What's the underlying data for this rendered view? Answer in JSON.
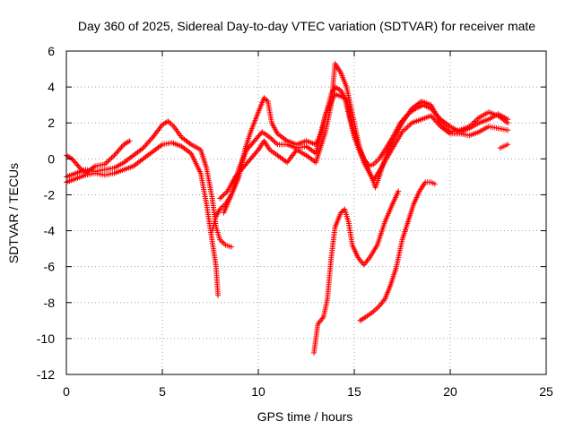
{
  "chart_data": {
    "type": "scatter",
    "title": "Day 360 of 2025, Sidereal Day-to-day VTEC variation (SDTVAR) for receiver mate",
    "xlabel": "GPS time / hours",
    "ylabel": "SDTVAR / TECUs",
    "xlim": [
      0,
      25
    ],
    "ylim": [
      -12,
      6
    ],
    "xticks": [
      "0",
      "5",
      "10",
      "15",
      "20",
      "25"
    ],
    "yticks": [
      "-12",
      "-10",
      "-8",
      "-6",
      "-4",
      "-2",
      "0",
      "2",
      "4",
      "6"
    ],
    "grid": true,
    "marker": "+",
    "color": "#ff0000",
    "series": [
      {
        "tracks": [
          [
            [
              0,
              -1.3
            ],
            [
              0.5,
              -1.1
            ],
            [
              1,
              -0.9
            ],
            [
              1.5,
              -0.8
            ],
            [
              2,
              -0.9
            ],
            [
              2.5,
              -0.8
            ],
            [
              3,
              -0.6
            ],
            [
              3.5,
              -0.4
            ],
            [
              4,
              0.0
            ],
            [
              4.5,
              0.4
            ],
            [
              5,
              0.8
            ],
            [
              5.5,
              0.9
            ],
            [
              6,
              0.7
            ],
            [
              6.5,
              0.3
            ],
            [
              7,
              -0.8
            ],
            [
              7.3,
              -2.5
            ],
            [
              7.6,
              -4.6
            ],
            [
              7.8,
              -6.0
            ],
            [
              7.9,
              -7.6
            ]
          ],
          [
            [
              0,
              -1.0
            ],
            [
              0.5,
              -0.8
            ],
            [
              1,
              -0.6
            ],
            [
              1.5,
              -0.7
            ],
            [
              2,
              -0.6
            ],
            [
              2.5,
              -0.5
            ],
            [
              3,
              -0.2
            ],
            [
              3.5,
              0.2
            ],
            [
              4,
              0.6
            ],
            [
              4.5,
              1.2
            ],
            [
              5,
              1.9
            ],
            [
              5.3,
              2.1
            ],
            [
              5.6,
              1.8
            ],
            [
              6,
              1.2
            ],
            [
              6.5,
              0.8
            ],
            [
              7,
              0.5
            ],
            [
              7.3,
              -0.5
            ],
            [
              7.6,
              -2.2
            ],
            [
              7.8,
              -3.8
            ],
            [
              8.0,
              -4.5
            ],
            [
              8.3,
              -4.8
            ],
            [
              8.6,
              -4.9
            ]
          ],
          [
            [
              0,
              0.2
            ],
            [
              0.3,
              0.0
            ],
            [
              0.7,
              -0.5
            ],
            [
              1,
              -0.8
            ],
            [
              1.5,
              -0.4
            ],
            [
              2,
              -0.3
            ],
            [
              2.5,
              0.2
            ],
            [
              3,
              0.8
            ],
            [
              3.3,
              1.0
            ]
          ],
          [
            [
              7.6,
              -4.0
            ],
            [
              7.8,
              -3.2
            ],
            [
              8.0,
              -2.8
            ],
            [
              8.3,
              -2.5
            ],
            [
              8.6,
              -2.0
            ],
            [
              9.0,
              -1.0
            ],
            [
              9.3,
              0.5
            ],
            [
              9.6,
              1.5
            ],
            [
              10,
              2.6
            ],
            [
              10.3,
              3.4
            ],
            [
              10.5,
              3.2
            ],
            [
              10.7,
              2.0
            ],
            [
              11,
              1.4
            ],
            [
              11.5,
              1.0
            ],
            [
              12,
              0.8
            ],
            [
              12.5,
              1.0
            ],
            [
              13,
              0.8
            ],
            [
              13.3,
              1.5
            ],
            [
              13.6,
              2.8
            ],
            [
              13.8,
              3.6
            ],
            [
              14,
              4.0
            ],
            [
              14.3,
              3.8
            ],
            [
              14.6,
              3.2
            ],
            [
              14.9,
              1.8
            ],
            [
              15.2,
              0.8
            ],
            [
              15.5,
              0.0
            ],
            [
              15.8,
              -0.4
            ],
            [
              16,
              -0.3
            ],
            [
              16.3,
              0.0
            ],
            [
              16.6,
              0.5
            ],
            [
              17,
              1.2
            ],
            [
              17.4,
              2.0
            ],
            [
              17.8,
              2.5
            ],
            [
              18.2,
              2.8
            ],
            [
              18.6,
              3.0
            ],
            [
              19,
              2.8
            ],
            [
              19.5,
              2.2
            ],
            [
              20,
              1.8
            ],
            [
              20.5,
              1.5
            ],
            [
              21,
              1.7
            ],
            [
              21.5,
              2.0
            ],
            [
              22,
              2.2
            ],
            [
              22.5,
              2.5
            ],
            [
              23,
              2.2
            ]
          ],
          [
            [
              8.0,
              -2.2
            ],
            [
              8.4,
              -1.8
            ],
            [
              8.8,
              -1.0
            ],
            [
              9.2,
              -0.5
            ],
            [
              9.6,
              0.0
            ],
            [
              10,
              0.5
            ],
            [
              10.3,
              1.0
            ],
            [
              10.6,
              0.5
            ],
            [
              11,
              0.2
            ],
            [
              11.5,
              -0.2
            ],
            [
              12,
              0.5
            ],
            [
              12.5,
              0.2
            ],
            [
              13,
              -0.2
            ],
            [
              13.5,
              1.5
            ],
            [
              13.8,
              3.0
            ],
            [
              14.0,
              5.3
            ],
            [
              14.3,
              4.8
            ],
            [
              14.6,
              4.0
            ],
            [
              15.0,
              2.0
            ],
            [
              15.3,
              0.5
            ],
            [
              15.6,
              -0.3
            ],
            [
              15.9,
              -1.0
            ],
            [
              16.1,
              -1.6
            ],
            [
              16.3,
              -1.0
            ],
            [
              16.6,
              0.0
            ],
            [
              17,
              1.0
            ],
            [
              17.5,
              2.0
            ],
            [
              18,
              2.8
            ],
            [
              18.5,
              3.2
            ],
            [
              19,
              3.0
            ],
            [
              19.5,
              2.0
            ],
            [
              20,
              1.5
            ],
            [
              20.5,
              1.6
            ],
            [
              21,
              1.8
            ],
            [
              21.5,
              2.3
            ],
            [
              22,
              2.6
            ],
            [
              22.5,
              2.4
            ],
            [
              23,
              2.0
            ]
          ],
          [
            [
              8.2,
              -3.0
            ],
            [
              8.6,
              -2.0
            ],
            [
              9.0,
              -0.5
            ],
            [
              9.4,
              0.5
            ],
            [
              9.8,
              1.0
            ],
            [
              10.2,
              1.5
            ],
            [
              10.6,
              1.2
            ],
            [
              11,
              0.8
            ],
            [
              11.5,
              0.8
            ],
            [
              12,
              0.6
            ],
            [
              12.5,
              0.7
            ],
            [
              13,
              0.3
            ],
            [
              13.5,
              2.5
            ],
            [
              14,
              3.6
            ],
            [
              14.5,
              3.4
            ],
            [
              15,
              1.2
            ],
            [
              15.5,
              -0.2
            ],
            [
              16,
              -1.2
            ],
            [
              16.4,
              -0.5
            ],
            [
              17,
              0.6
            ],
            [
              17.5,
              1.5
            ],
            [
              18,
              2.0
            ],
            [
              18.5,
              2.2
            ],
            [
              19,
              2.4
            ],
            [
              19.5,
              1.8
            ],
            [
              20,
              1.4
            ],
            [
              20.5,
              1.4
            ],
            [
              21,
              1.3
            ],
            [
              21.5,
              1.5
            ],
            [
              22,
              1.8
            ],
            [
              22.5,
              1.7
            ],
            [
              23,
              1.6
            ]
          ],
          [
            [
              12.9,
              -10.8
            ],
            [
              13.1,
              -9.2
            ],
            [
              13.4,
              -8.8
            ],
            [
              13.6,
              -7.8
            ],
            [
              13.8,
              -5.5
            ],
            [
              14.0,
              -3.8
            ],
            [
              14.3,
              -3.0
            ],
            [
              14.5,
              -2.8
            ],
            [
              14.7,
              -3.5
            ],
            [
              14.9,
              -4.8
            ],
            [
              15.2,
              -5.5
            ],
            [
              15.5,
              -5.9
            ],
            [
              15.8,
              -5.5
            ],
            [
              16.2,
              -4.8
            ],
            [
              16.6,
              -3.5
            ],
            [
              17.0,
              -2.5
            ],
            [
              17.3,
              -1.8
            ]
          ],
          [
            [
              15.3,
              -9.0
            ],
            [
              15.6,
              -8.8
            ],
            [
              16.0,
              -8.5
            ],
            [
              16.3,
              -8.2
            ],
            [
              16.6,
              -7.8
            ],
            [
              16.9,
              -7.0
            ],
            [
              17.2,
              -6.0
            ],
            [
              17.5,
              -4.5
            ],
            [
              17.8,
              -3.5
            ],
            [
              18.1,
              -2.5
            ],
            [
              18.4,
              -1.8
            ],
            [
              18.7,
              -1.3
            ],
            [
              19.0,
              -1.3
            ],
            [
              19.2,
              -1.4
            ]
          ],
          [
            [
              22.6,
              0.6
            ],
            [
              22.8,
              0.7
            ],
            [
              23.0,
              0.8
            ]
          ]
        ]
      }
    ]
  }
}
